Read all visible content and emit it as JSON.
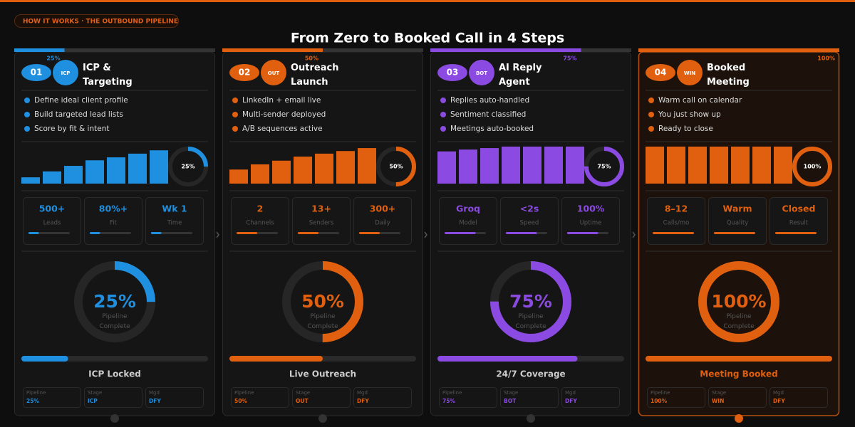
{
  "header": {
    "badge": "HOW IT WORKS · THE OUTBOUND PIPELINE",
    "title": "From Zero to Booked Call in 4 Steps"
  },
  "steps": [
    {
      "number": "01",
      "tag": "ICP",
      "title": "ICP & Targeting",
      "color": "#1f8fdf",
      "highlight": false,
      "progress": 25,
      "progress_label": "25%",
      "bullets": [
        "Define ideal client profile",
        "Build targeted lead lists",
        "Score by fit & intent"
      ],
      "bars": [
        17,
        33,
        48,
        63,
        71,
        81,
        90
      ],
      "stats": [
        {
          "value": "500+",
          "label": "Leads"
        },
        {
          "value": "80%+",
          "label": "Fit"
        },
        {
          "value": "Wk 1",
          "label": "Time"
        }
      ],
      "ring_caption": "Pipeline Complete",
      "status": "ICP Locked",
      "footer": [
        {
          "label": "Pipeline",
          "value": "25%"
        },
        {
          "label": "Stage",
          "value": "ICP"
        },
        {
          "label": "Mgd",
          "value": "DFY"
        }
      ]
    },
    {
      "number": "02",
      "tag": "OUT",
      "title": "Outreach Launch",
      "color": "#e0600f",
      "highlight": false,
      "progress": 50,
      "progress_label": "50%",
      "bullets": [
        "LinkedIn + email live",
        "Multi-sender deployed",
        "A/B sequences active"
      ],
      "bars": [
        38,
        52,
        62,
        73,
        81,
        88,
        96
      ],
      "stats": [
        {
          "value": "2",
          "label": "Channels"
        },
        {
          "value": "13+",
          "label": "Senders"
        },
        {
          "value": "300+",
          "label": "Daily"
        }
      ],
      "ring_caption": "Pipeline Complete",
      "status": "Live Outreach",
      "footer": [
        {
          "label": "Pipeline",
          "value": "50%"
        },
        {
          "label": "Stage",
          "value": "OUT"
        },
        {
          "label": "Mgd",
          "value": "DFY"
        }
      ]
    },
    {
      "number": "03",
      "tag": "BOT",
      "title": "AI Reply Agent",
      "color": "#8b4be2",
      "highlight": false,
      "progress": 75,
      "progress_label": "75%",
      "bullets": [
        "Replies auto-handled",
        "Sentiment classified",
        "Meetings auto-booked"
      ],
      "bars": [
        87,
        92,
        96,
        100,
        100,
        100,
        100
      ],
      "stats": [
        {
          "value": "Groq",
          "label": "Model"
        },
        {
          "value": "<2s",
          "label": "Speed"
        },
        {
          "value": "100%",
          "label": "Uptime"
        }
      ],
      "ring_caption": "Pipeline Complete",
      "status": "24/7 Coverage",
      "footer": [
        {
          "label": "Pipeline",
          "value": "75%"
        },
        {
          "label": "Stage",
          "value": "BOT"
        },
        {
          "label": "Mgd",
          "value": "DFY"
        }
      ]
    },
    {
      "number": "04",
      "tag": "WIN",
      "title": "Booked Meeting",
      "color": "#e0600f",
      "highlight": true,
      "progress": 100,
      "progress_label": "100%",
      "bullets": [
        "Warm call on calendar",
        "You just show up",
        "Ready to close"
      ],
      "bars": [
        100,
        100,
        100,
        100,
        100,
        100,
        100
      ],
      "stats": [
        {
          "value": "8–12",
          "label": "Calls/mo"
        },
        {
          "value": "Warm",
          "label": "Quality"
        },
        {
          "value": "Closed",
          "label": "Result"
        }
      ],
      "ring_caption": "Pipeline Complete",
      "status": "Meeting Booked",
      "footer": [
        {
          "label": "Pipeline",
          "value": "100%"
        },
        {
          "label": "Stage",
          "value": "WIN"
        },
        {
          "label": "Mgd",
          "value": "DFY"
        }
      ]
    }
  ]
}
